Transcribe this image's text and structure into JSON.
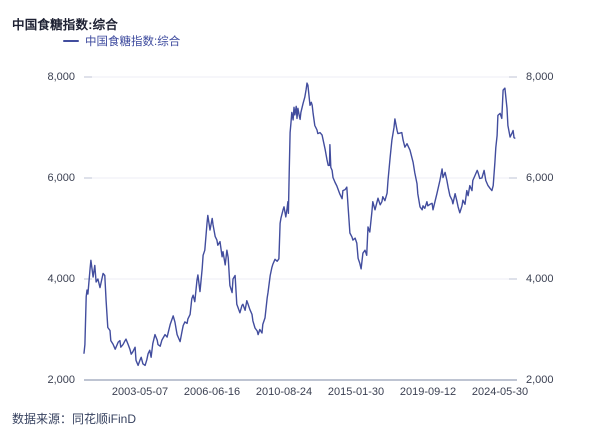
{
  "title": "中国食糖指数:综合",
  "legend": {
    "label": "中国食糖指数:综合"
  },
  "source": "数据来源：同花顺iFinD",
  "colors": {
    "line": "#424d9e",
    "title_text": "#1e2133",
    "legend_text": "#3d4a9e",
    "axis_text": "#3b4052",
    "grid": "#eceef5",
    "grid_cap": "#c9cddc",
    "axis_line": "#a9b0c4",
    "source_text": "#36415f",
    "background": "#ffffff"
  },
  "chart_data": {
    "type": "line",
    "title": "中国食糖指数:综合",
    "ylim": [
      2000,
      8000
    ],
    "grid": "horizontal",
    "legend_position": "top-left",
    "y_ticks": [
      8000,
      6000,
      4000,
      2000
    ],
    "y_tick_labels": [
      "8,000",
      "6,000",
      "4,000",
      "2,000"
    ],
    "x_ticks": [
      {
        "label": "2003-05-07",
        "pos": 0.129
      },
      {
        "label": "2006-06-16",
        "pos": 0.296
      },
      {
        "label": "2010-08-24",
        "pos": 0.462
      },
      {
        "label": "2015-01-30",
        "pos": 0.628
      },
      {
        "label": "2019-09-12",
        "pos": 0.794
      },
      {
        "label": "2024-05-30",
        "pos": 0.961
      }
    ],
    "series": [
      {
        "name": "中国食糖指数:综合",
        "x_is_fraction_of_plot_width": true,
        "points": [
          [
            0.0,
            2530
          ],
          [
            0.002,
            2700
          ],
          [
            0.005,
            3650
          ],
          [
            0.007,
            3780
          ],
          [
            0.009,
            3700
          ],
          [
            0.014,
            4210
          ],
          [
            0.016,
            4370
          ],
          [
            0.021,
            4040
          ],
          [
            0.025,
            4270
          ],
          [
            0.028,
            3940
          ],
          [
            0.032,
            4000
          ],
          [
            0.037,
            3830
          ],
          [
            0.044,
            4110
          ],
          [
            0.048,
            4070
          ],
          [
            0.051,
            3570
          ],
          [
            0.055,
            3040
          ],
          [
            0.06,
            2980
          ],
          [
            0.062,
            2780
          ],
          [
            0.067,
            2710
          ],
          [
            0.072,
            2610
          ],
          [
            0.079,
            2750
          ],
          [
            0.083,
            2780
          ],
          [
            0.085,
            2650
          ],
          [
            0.09,
            2700
          ],
          [
            0.095,
            2780
          ],
          [
            0.097,
            2810
          ],
          [
            0.102,
            2700
          ],
          [
            0.106,
            2610
          ],
          [
            0.109,
            2510
          ],
          [
            0.113,
            2560
          ],
          [
            0.118,
            2650
          ],
          [
            0.12,
            2390
          ],
          [
            0.125,
            2290
          ],
          [
            0.129,
            2390
          ],
          [
            0.132,
            2450
          ],
          [
            0.136,
            2320
          ],
          [
            0.141,
            2290
          ],
          [
            0.145,
            2400
          ],
          [
            0.148,
            2520
          ],
          [
            0.152,
            2590
          ],
          [
            0.155,
            2450
          ],
          [
            0.159,
            2720
          ],
          [
            0.164,
            2900
          ],
          [
            0.169,
            2790
          ],
          [
            0.171,
            2700
          ],
          [
            0.176,
            2670
          ],
          [
            0.18,
            2790
          ],
          [
            0.187,
            2900
          ],
          [
            0.192,
            2850
          ],
          [
            0.199,
            3100
          ],
          [
            0.206,
            3270
          ],
          [
            0.21,
            3150
          ],
          [
            0.215,
            2900
          ],
          [
            0.222,
            2760
          ],
          [
            0.226,
            2950
          ],
          [
            0.229,
            3080
          ],
          [
            0.233,
            3150
          ],
          [
            0.238,
            3120
          ],
          [
            0.24,
            3210
          ],
          [
            0.245,
            3300
          ],
          [
            0.249,
            3610
          ],
          [
            0.252,
            3680
          ],
          [
            0.256,
            3550
          ],
          [
            0.261,
            3980
          ],
          [
            0.263,
            4080
          ],
          [
            0.268,
            3750
          ],
          [
            0.273,
            4210
          ],
          [
            0.275,
            4470
          ],
          [
            0.279,
            4570
          ],
          [
            0.284,
            5100
          ],
          [
            0.286,
            5260
          ],
          [
            0.291,
            4970
          ],
          [
            0.296,
            5200
          ],
          [
            0.298,
            5080
          ],
          [
            0.303,
            4840
          ],
          [
            0.307,
            4770
          ],
          [
            0.309,
            4670
          ],
          [
            0.314,
            4740
          ],
          [
            0.319,
            4440
          ],
          [
            0.321,
            4540
          ],
          [
            0.326,
            4280
          ],
          [
            0.33,
            4570
          ],
          [
            0.333,
            4420
          ],
          [
            0.337,
            3870
          ],
          [
            0.342,
            3730
          ],
          [
            0.344,
            4000
          ],
          [
            0.349,
            4070
          ],
          [
            0.353,
            3500
          ],
          [
            0.356,
            3430
          ],
          [
            0.36,
            3330
          ],
          [
            0.365,
            3480
          ],
          [
            0.367,
            3500
          ],
          [
            0.372,
            3380
          ],
          [
            0.376,
            3570
          ],
          [
            0.379,
            3500
          ],
          [
            0.383,
            3400
          ],
          [
            0.388,
            3300
          ],
          [
            0.39,
            3170
          ],
          [
            0.395,
            3030
          ],
          [
            0.4,
            2970
          ],
          [
            0.402,
            2900
          ],
          [
            0.406,
            3000
          ],
          [
            0.411,
            2930
          ],
          [
            0.413,
            3100
          ],
          [
            0.418,
            3230
          ],
          [
            0.423,
            3630
          ],
          [
            0.425,
            3730
          ],
          [
            0.43,
            4070
          ],
          [
            0.434,
            4230
          ],
          [
            0.436,
            4290
          ],
          [
            0.441,
            4390
          ],
          [
            0.446,
            4350
          ],
          [
            0.45,
            4400
          ],
          [
            0.453,
            5100
          ],
          [
            0.455,
            5210
          ],
          [
            0.46,
            5380
          ],
          [
            0.462,
            5430
          ],
          [
            0.466,
            5230
          ],
          [
            0.469,
            5400
          ],
          [
            0.471,
            5530
          ],
          [
            0.472,
            5300
          ],
          [
            0.474,
            6100
          ],
          [
            0.476,
            6900
          ],
          [
            0.478,
            7100
          ],
          [
            0.48,
            7300
          ],
          [
            0.483,
            7150
          ],
          [
            0.485,
            7400
          ],
          [
            0.487,
            7250
          ],
          [
            0.49,
            7420
          ],
          [
            0.492,
            7180
          ],
          [
            0.494,
            7380
          ],
          [
            0.497,
            7240
          ],
          [
            0.499,
            7160
          ],
          [
            0.501,
            7300
          ],
          [
            0.506,
            7480
          ],
          [
            0.51,
            7600
          ],
          [
            0.513,
            7750
          ],
          [
            0.515,
            7880
          ],
          [
            0.517,
            7840
          ],
          [
            0.522,
            7440
          ],
          [
            0.525,
            7500
          ],
          [
            0.527,
            7440
          ],
          [
            0.529,
            7280
          ],
          [
            0.533,
            7040
          ],
          [
            0.538,
            6950
          ],
          [
            0.54,
            6880
          ],
          [
            0.545,
            6900
          ],
          [
            0.55,
            6850
          ],
          [
            0.557,
            6560
          ],
          [
            0.561,
            6370
          ],
          [
            0.564,
            6250
          ],
          [
            0.567,
            6250
          ],
          [
            0.568,
            6660
          ],
          [
            0.57,
            6210
          ],
          [
            0.573,
            6150
          ],
          [
            0.575,
            6010
          ],
          [
            0.58,
            5910
          ],
          [
            0.584,
            5840
          ],
          [
            0.587,
            5770
          ],
          [
            0.591,
            5680
          ],
          [
            0.596,
            5590
          ],
          [
            0.598,
            5750
          ],
          [
            0.603,
            5770
          ],
          [
            0.607,
            5820
          ],
          [
            0.61,
            5430
          ],
          [
            0.614,
            4910
          ],
          [
            0.619,
            4830
          ],
          [
            0.621,
            4770
          ],
          [
            0.626,
            4810
          ],
          [
            0.63,
            4710
          ],
          [
            0.633,
            4410
          ],
          [
            0.637,
            4310
          ],
          [
            0.64,
            4200
          ],
          [
            0.644,
            4510
          ],
          [
            0.649,
            4570
          ],
          [
            0.653,
            4470
          ],
          [
            0.656,
            5030
          ],
          [
            0.66,
            4930
          ],
          [
            0.665,
            5330
          ],
          [
            0.667,
            5530
          ],
          [
            0.672,
            5370
          ],
          [
            0.679,
            5600
          ],
          [
            0.684,
            5470
          ],
          [
            0.688,
            5530
          ],
          [
            0.69,
            5630
          ],
          [
            0.695,
            5550
          ],
          [
            0.7,
            5700
          ],
          [
            0.702,
            5950
          ],
          [
            0.707,
            6400
          ],
          [
            0.711,
            6750
          ],
          [
            0.716,
            7000
          ],
          [
            0.718,
            7170
          ],
          [
            0.723,
            6940
          ],
          [
            0.725,
            6880
          ],
          [
            0.73,
            6890
          ],
          [
            0.734,
            6900
          ],
          [
            0.737,
            6750
          ],
          [
            0.741,
            6610
          ],
          [
            0.746,
            6680
          ],
          [
            0.748,
            6640
          ],
          [
            0.753,
            6550
          ],
          [
            0.76,
            6310
          ],
          [
            0.764,
            6100
          ],
          [
            0.769,
            5890
          ],
          [
            0.771,
            5690
          ],
          [
            0.776,
            5430
          ],
          [
            0.781,
            5370
          ],
          [
            0.783,
            5450
          ],
          [
            0.787,
            5400
          ],
          [
            0.792,
            5530
          ],
          [
            0.794,
            5450
          ],
          [
            0.799,
            5480
          ],
          [
            0.804,
            5500
          ],
          [
            0.806,
            5370
          ],
          [
            0.811,
            5550
          ],
          [
            0.815,
            5690
          ],
          [
            0.822,
            5950
          ],
          [
            0.827,
            6180
          ],
          [
            0.829,
            6010
          ],
          [
            0.834,
            6110
          ],
          [
            0.838,
            5950
          ],
          [
            0.841,
            5810
          ],
          [
            0.845,
            5650
          ],
          [
            0.85,
            5560
          ],
          [
            0.852,
            5490
          ],
          [
            0.857,
            5690
          ],
          [
            0.861,
            5550
          ],
          [
            0.864,
            5430
          ],
          [
            0.868,
            5310
          ],
          [
            0.873,
            5450
          ],
          [
            0.875,
            5560
          ],
          [
            0.88,
            5480
          ],
          [
            0.884,
            5750
          ],
          [
            0.887,
            5650
          ],
          [
            0.891,
            5850
          ],
          [
            0.896,
            5750
          ],
          [
            0.898,
            5950
          ],
          [
            0.903,
            6050
          ],
          [
            0.908,
            6150
          ],
          [
            0.91,
            6110
          ],
          [
            0.914,
            5990
          ],
          [
            0.919,
            6000
          ],
          [
            0.924,
            6150
          ],
          [
            0.928,
            5950
          ],
          [
            0.933,
            5850
          ],
          [
            0.938,
            5790
          ],
          [
            0.942,
            5750
          ],
          [
            0.945,
            5850
          ],
          [
            0.949,
            6310
          ],
          [
            0.951,
            6600
          ],
          [
            0.954,
            6840
          ],
          [
            0.956,
            7240
          ],
          [
            0.961,
            7280
          ],
          [
            0.965,
            7180
          ],
          [
            0.968,
            7740
          ],
          [
            0.972,
            7780
          ],
          [
            0.977,
            7380
          ],
          [
            0.979,
            7040
          ],
          [
            0.984,
            6810
          ],
          [
            0.988,
            6880
          ],
          [
            0.991,
            6940
          ],
          [
            0.993,
            6800
          ],
          [
            0.995,
            6790
          ]
        ]
      }
    ]
  }
}
